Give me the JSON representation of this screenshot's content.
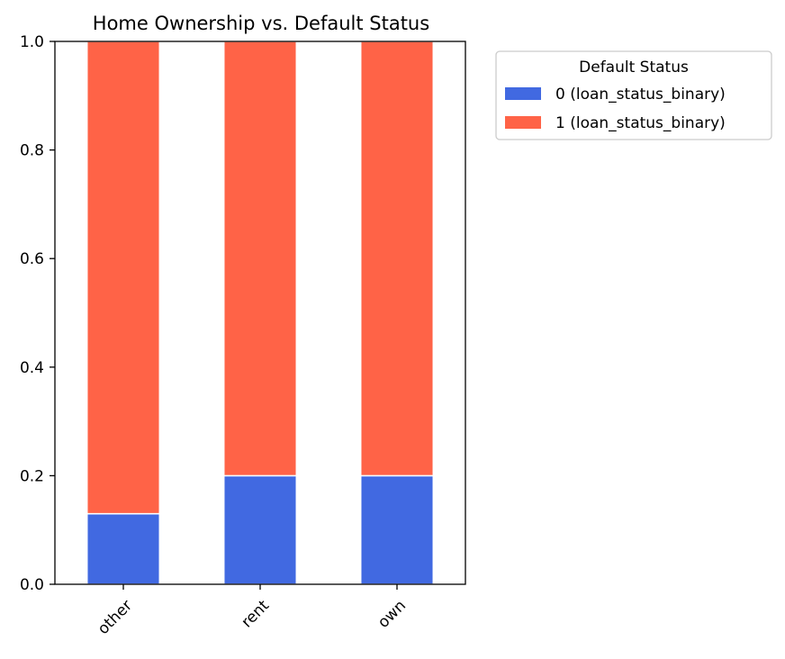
{
  "chart_data": {
    "type": "bar",
    "stacked": true,
    "title": "Home Ownership vs. Default Status",
    "xlabel": "",
    "ylabel": "",
    "categories": [
      "other",
      "rent",
      "own"
    ],
    "series": [
      {
        "name": "0 (loan_status_binary)",
        "values": [
          0.13,
          0.2,
          0.2
        ],
        "color": "#4169E1"
      },
      {
        "name": "1 (loan_status_binary)",
        "values": [
          0.87,
          0.8,
          0.8
        ],
        "color": "#FF6347"
      }
    ],
    "ylim": [
      0,
      1.0
    ],
    "yticks": [
      "0.0",
      "0.2",
      "0.4",
      "0.6",
      "0.8",
      "1.0"
    ],
    "grid": false,
    "legend": {
      "title": "Default Status",
      "placement": "outside-top-right"
    }
  }
}
